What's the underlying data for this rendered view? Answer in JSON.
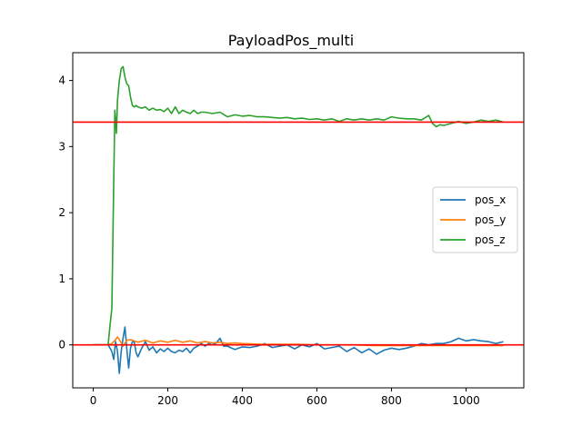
{
  "chart_data": {
    "type": "line",
    "title": "PayloadPos_multi",
    "xlabel": "",
    "ylabel": "",
    "xlim": [
      -55,
      1155
    ],
    "ylim": [
      -0.65,
      4.42
    ],
    "xticks": [
      0,
      200,
      400,
      600,
      800,
      1000
    ],
    "yticks": [
      0,
      1,
      2,
      3,
      4
    ],
    "xtick_labels": [
      "0",
      "200",
      "400",
      "600",
      "800",
      "1000"
    ],
    "ytick_labels": [
      "0",
      "1",
      "2",
      "3",
      "4"
    ],
    "grid": false,
    "legend_position": "center-right",
    "colors": {
      "pos_x": "#1f77b4",
      "pos_y": "#ff7f0e",
      "pos_z": "#2ca02c",
      "reference": "#ff0000"
    },
    "reference_lines": [
      3.37,
      0.0
    ],
    "series": [
      {
        "name": "pos_x",
        "x": [
          0,
          40,
          45,
          50,
          55,
          60,
          65,
          70,
          75,
          80,
          85,
          90,
          95,
          100,
          105,
          110,
          115,
          120,
          130,
          140,
          150,
          160,
          170,
          180,
          190,
          200,
          210,
          220,
          230,
          240,
          250,
          260,
          270,
          280,
          290,
          300,
          310,
          320,
          330,
          340,
          350,
          360,
          380,
          400,
          420,
          440,
          460,
          480,
          500,
          520,
          540,
          560,
          580,
          600,
          620,
          640,
          660,
          680,
          700,
          720,
          740,
          760,
          780,
          800,
          820,
          840,
          860,
          880,
          900,
          920,
          940,
          960,
          980,
          1000,
          1020,
          1040,
          1060,
          1080,
          1100
        ],
        "y": [
          0.0,
          0.0,
          -0.05,
          -0.1,
          -0.22,
          0.05,
          -0.1,
          -0.43,
          -0.1,
          0.1,
          0.27,
          -0.05,
          -0.35,
          -0.05,
          0.05,
          0.05,
          -0.12,
          -0.18,
          -0.05,
          0.05,
          -0.08,
          -0.03,
          -0.12,
          -0.06,
          -0.1,
          -0.05,
          -0.1,
          -0.12,
          -0.08,
          -0.1,
          -0.05,
          -0.12,
          -0.05,
          -0.02,
          0.02,
          -0.02,
          0.02,
          0.0,
          0.03,
          0.1,
          -0.02,
          -0.02,
          -0.07,
          -0.03,
          -0.04,
          -0.02,
          0.02,
          -0.04,
          -0.02,
          0.0,
          -0.06,
          0.0,
          -0.03,
          0.02,
          -0.06,
          -0.04,
          -0.02,
          -0.1,
          -0.04,
          -0.12,
          -0.06,
          -0.14,
          -0.08,
          -0.05,
          -0.07,
          -0.05,
          -0.02,
          0.02,
          0.0,
          0.02,
          0.02,
          0.05,
          0.1,
          0.06,
          0.08,
          0.06,
          0.05,
          0.02,
          0.05
        ]
      },
      {
        "name": "pos_y",
        "x": [
          0,
          40,
          50,
          60,
          65,
          70,
          80,
          90,
          100,
          120,
          140,
          160,
          180,
          200,
          220,
          240,
          260,
          280,
          300,
          320,
          340,
          360,
          380,
          400,
          450,
          500,
          550,
          600,
          650,
          700,
          750,
          800,
          850,
          900,
          950,
          1000,
          1050,
          1100
        ],
        "y": [
          0.0,
          0.0,
          0.02,
          0.08,
          0.12,
          0.08,
          -0.02,
          0.07,
          0.08,
          0.04,
          0.07,
          0.03,
          0.06,
          0.04,
          0.07,
          0.04,
          0.06,
          0.03,
          0.05,
          0.03,
          0.04,
          0.02,
          0.03,
          0.02,
          0.01,
          0.01,
          0.01,
          0.0,
          0.0,
          0.0,
          -0.01,
          -0.01,
          -0.01,
          -0.01,
          -0.01,
          -0.01,
          -0.01,
          -0.01
        ]
      },
      {
        "name": "pos_z",
        "x": [
          0,
          40,
          45,
          50,
          55,
          58,
          62,
          65,
          70,
          75,
          80,
          85,
          90,
          95,
          100,
          105,
          110,
          115,
          120,
          130,
          140,
          150,
          160,
          170,
          180,
          190,
          200,
          210,
          220,
          230,
          240,
          250,
          260,
          270,
          280,
          290,
          300,
          320,
          340,
          360,
          380,
          400,
          420,
          440,
          460,
          480,
          500,
          520,
          540,
          560,
          580,
          600,
          620,
          640,
          660,
          680,
          700,
          720,
          740,
          760,
          780,
          800,
          820,
          840,
          860,
          880,
          900,
          910,
          920,
          930,
          940,
          960,
          980,
          1000,
          1020,
          1040,
          1060,
          1080,
          1100
        ],
        "y": [
          0.0,
          0.0,
          0.3,
          0.55,
          2.5,
          3.55,
          3.2,
          3.7,
          4.0,
          4.18,
          4.21,
          4.05,
          3.95,
          3.92,
          3.75,
          3.62,
          3.6,
          3.62,
          3.6,
          3.58,
          3.6,
          3.55,
          3.58,
          3.55,
          3.56,
          3.53,
          3.58,
          3.5,
          3.6,
          3.5,
          3.55,
          3.52,
          3.5,
          3.55,
          3.5,
          3.52,
          3.52,
          3.5,
          3.52,
          3.45,
          3.48,
          3.46,
          3.47,
          3.45,
          3.45,
          3.44,
          3.43,
          3.44,
          3.42,
          3.43,
          3.41,
          3.42,
          3.4,
          3.42,
          3.38,
          3.42,
          3.4,
          3.42,
          3.4,
          3.42,
          3.4,
          3.45,
          3.43,
          3.42,
          3.42,
          3.4,
          3.47,
          3.35,
          3.3,
          3.33,
          3.32,
          3.35,
          3.38,
          3.35,
          3.37,
          3.4,
          3.38,
          3.4,
          3.37
        ]
      }
    ]
  }
}
